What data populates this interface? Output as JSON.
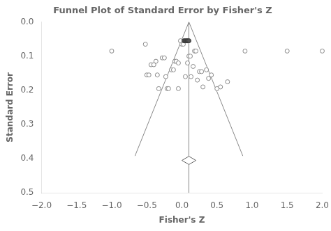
{
  "chart_data": {
    "type": "scatter",
    "title": "Funnel Plot of Standard Error by Fisher's Z",
    "xlabel": "Fisher's Z",
    "ylabel": "Standard Error",
    "xlim": [
      -2.0,
      2.0
    ],
    "ylim": [
      0.5,
      0.0
    ],
    "xticks": [
      {
        "value": -2.0,
        "label": "−2.0"
      },
      {
        "value": -1.5,
        "label": "−1.5"
      },
      {
        "value": -1.0,
        "label": "−1.0"
      },
      {
        "value": -0.5,
        "label": "−0.5"
      },
      {
        "value": 0.0,
        "label": "0.0"
      },
      0.5,
      {
        "value": 1.0,
        "label": "1.0"
      },
      1.5,
      {
        "value": 2.0,
        "label": "2.0"
      }
    ],
    "yticks": [
      {
        "value": 0.0,
        "label": "0.0"
      },
      0.1,
      0.2,
      0.3,
      0.4,
      0.5
    ],
    "grid": false,
    "series": [
      {
        "type": "line",
        "color": "#888888",
        "values": [
          [
            0.1,
            0
          ],
          [
            -0.66832,
            0.392
          ]
        ]
      },
      {
        "type": "line",
        "color": "#888888",
        "values": [
          [
            0.1,
            0
          ],
          [
            0.86832,
            0.392
          ]
        ]
      },
      {
        "type": "vertical_line",
        "color": "#888888",
        "x": 0.1
      },
      {
        "type": "scatter",
        "marker": "circle",
        "color": "#888888",
        "values": [
          [
            -1.0,
            0.085
          ],
          [
            -0.52,
            0.065
          ],
          [
            -0.5,
            0.155
          ],
          [
            -0.47,
            0.155
          ],
          [
            -0.44,
            0.125
          ],
          [
            -0.4,
            0.125
          ],
          [
            -0.37,
            0.115
          ],
          [
            -0.35,
            0.155
          ],
          [
            -0.33,
            0.195
          ],
          [
            -0.28,
            0.105
          ],
          [
            -0.25,
            0.105
          ],
          [
            -0.23,
            0.16
          ],
          [
            -0.21,
            0.195
          ],
          [
            -0.19,
            0.195
          ],
          [
            -0.15,
            0.14
          ],
          [
            -0.12,
            0.14
          ],
          [
            -0.1,
            0.115
          ],
          [
            -0.08,
            0.115
          ],
          [
            -0.05,
            0.12
          ],
          [
            -0.05,
            0.195
          ],
          [
            -0.02,
            0.055
          ],
          [
            0.0,
            0.065
          ],
          [
            0.02,
            0.065
          ],
          [
            0.05,
            0.16
          ],
          [
            0.08,
            0.12
          ],
          [
            0.1,
            0.1
          ],
          [
            0.12,
            0.1
          ],
          [
            0.13,
            0.16
          ],
          [
            0.16,
            0.13
          ],
          [
            0.18,
            0.085
          ],
          [
            0.2,
            0.085
          ],
          [
            0.22,
            0.17
          ],
          [
            0.25,
            0.145
          ],
          [
            0.28,
            0.145
          ],
          [
            0.3,
            0.19
          ],
          [
            0.35,
            0.14
          ],
          [
            0.38,
            0.165
          ],
          [
            0.42,
            0.155
          ],
          [
            0.5,
            0.195
          ],
          [
            0.55,
            0.19
          ],
          [
            0.65,
            0.175
          ],
          [
            0.9,
            0.085
          ],
          [
            1.5,
            0.085
          ],
          [
            2.0,
            0.085
          ]
        ]
      },
      {
        "type": "scatter",
        "marker": "circle",
        "color": "#555555",
        "values": [
          [
            0.03,
            0.055
          ],
          [
            0.05,
            0.055
          ],
          [
            0.07,
            0.055
          ],
          [
            0.08,
            0.055
          ],
          [
            0.1,
            0.055
          ]
        ]
      },
      {
        "type": "polygon",
        "color": "#606060",
        "values": [
          [
            0.0,
            0.405
          ],
          [
            0.1,
            0.393
          ],
          [
            0.2,
            0.405
          ],
          [
            0.1,
            0.417
          ]
        ]
      }
    ]
  }
}
